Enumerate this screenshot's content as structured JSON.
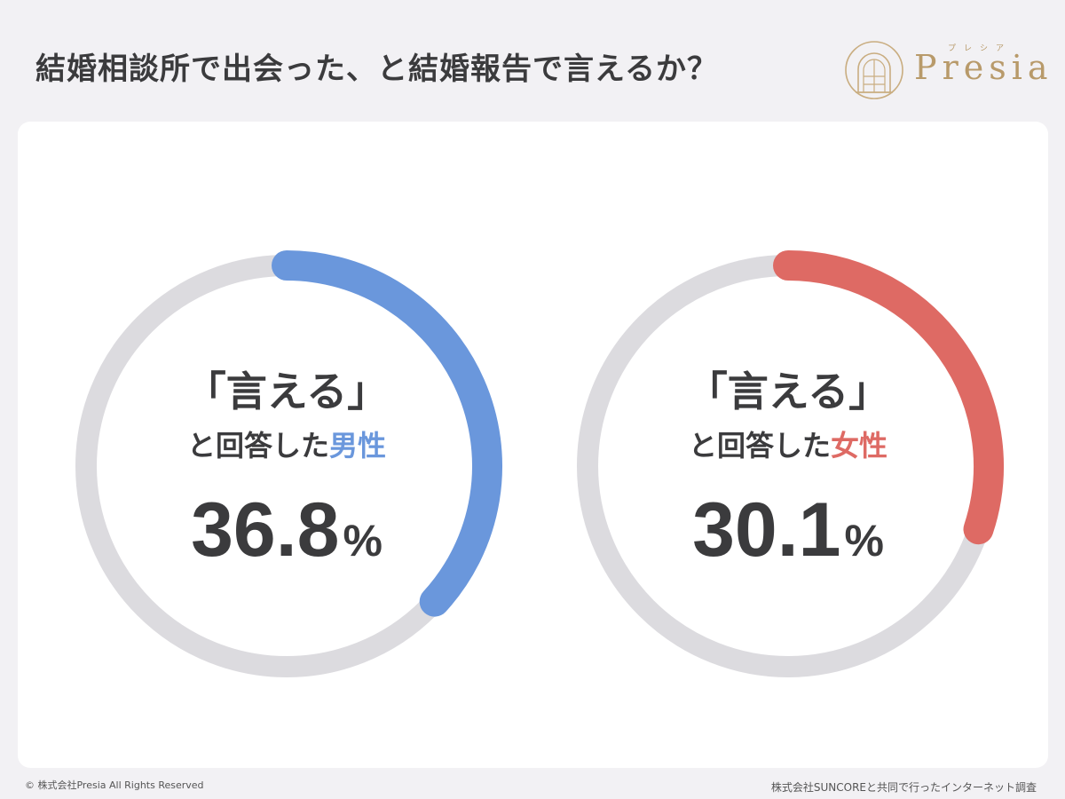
{
  "header": {
    "title": "結婚相談所で出会った、と結婚報告で言えるか？"
  },
  "logo": {
    "word": "Presia",
    "kana": "プレシア"
  },
  "colors": {
    "background": "#f2f1f4",
    "card": "#ffffff",
    "track": "#dcdbdf",
    "male": "#6a97dc",
    "female": "#de6a64",
    "text": "#3b3b3d",
    "logo_gold": "#b89a6a"
  },
  "chart_data": [
    {
      "type": "pie",
      "style": "donut-progress",
      "title": "「言える」",
      "label_prefix": "と回答した",
      "label_highlight": "男性",
      "value": 36.8,
      "display_value": "36.8",
      "unit": "%",
      "color": "#6a97dc",
      "max": 100
    },
    {
      "type": "pie",
      "style": "donut-progress",
      "title": "「言える」",
      "label_prefix": "と回答した",
      "label_highlight": "女性",
      "value": 30.1,
      "display_value": "30.1",
      "unit": "%",
      "color": "#de6a64",
      "max": 100
    }
  ],
  "footer": {
    "copyright": "© 株式会社Presia All Rights Reserved",
    "source": "株式会社SUNCOREと共同で行ったインターネット調査"
  }
}
